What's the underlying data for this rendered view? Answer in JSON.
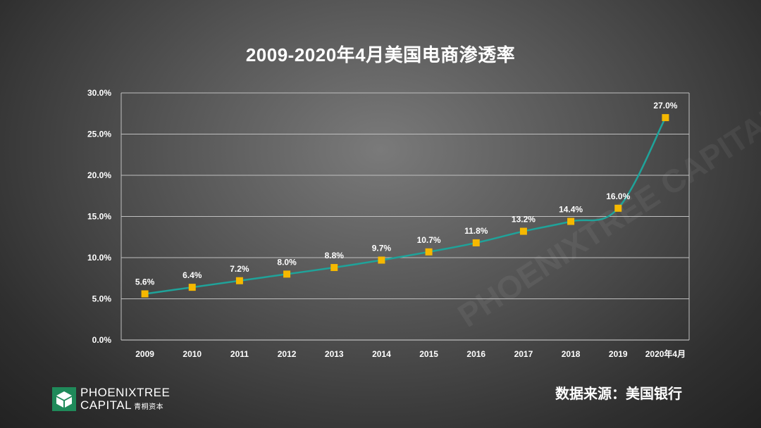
{
  "chart_data": {
    "type": "line",
    "title": "2009-2020年4月美国电商渗透率",
    "categories": [
      "2009",
      "2010",
      "2011",
      "2012",
      "2013",
      "2014",
      "2015",
      "2016",
      "2017",
      "2018",
      "2019",
      "2020年4月"
    ],
    "series": [
      {
        "values": [
          5.6,
          6.4,
          7.2,
          8.0,
          8.8,
          9.7,
          10.7,
          11.8,
          13.2,
          14.4,
          16.0,
          27.0
        ],
        "labels": [
          "5.6%",
          "6.4%",
          "7.2%",
          "8.0%",
          "8.8%",
          "9.7%",
          "10.7%",
          "11.8%",
          "13.2%",
          "14.4%",
          "16.0%",
          "27.0%"
        ],
        "line_color": "#1fa39a",
        "marker_color": "#f5b800"
      }
    ],
    "yticks": [
      "0.0%",
      "5.0%",
      "10.0%",
      "15.0%",
      "20.0%",
      "25.0%",
      "30.0%"
    ],
    "ylim": [
      0,
      30
    ],
    "grid": true,
    "legend": "none"
  },
  "source": "数据来源：美国银行",
  "logo": {
    "line1": "PHOENIXTREE",
    "line2": "CAPITAL",
    "cn": "青桐资本",
    "color": "#1f8a5a"
  }
}
